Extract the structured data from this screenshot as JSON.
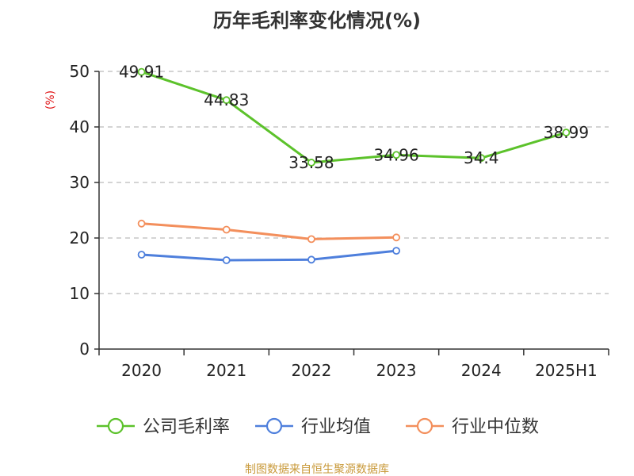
{
  "chart_data": {
    "type": "line",
    "title": "历年毛利率变化情况(%)",
    "ylabel": "(%)",
    "categories": [
      "2020",
      "2021",
      "2022",
      "2023",
      "2024",
      "2025H1"
    ],
    "ylim": [
      0,
      50
    ],
    "yticks": [
      "0",
      "10",
      "20",
      "30",
      "40",
      "50"
    ],
    "grid": true,
    "legend_position": "bottom",
    "series": [
      {
        "name": "公司毛利率",
        "values": [
          49.91,
          44.83,
          33.58,
          34.96,
          34.4,
          38.99
        ],
        "labels": [
          "49.91",
          "44.83",
          "33.58",
          "34.96",
          "34.4",
          "38.99"
        ],
        "color": "#5cc22b"
      },
      {
        "name": "行业均值",
        "values": [
          17.0,
          16.0,
          16.1,
          17.7,
          null,
          null
        ],
        "color": "#4e7fdc"
      },
      {
        "name": "行业中位数",
        "values": [
          22.6,
          21.5,
          19.8,
          20.1,
          null,
          null
        ],
        "color": "#f38f5c"
      }
    ]
  },
  "source": "制图数据来自恒生聚源数据库"
}
